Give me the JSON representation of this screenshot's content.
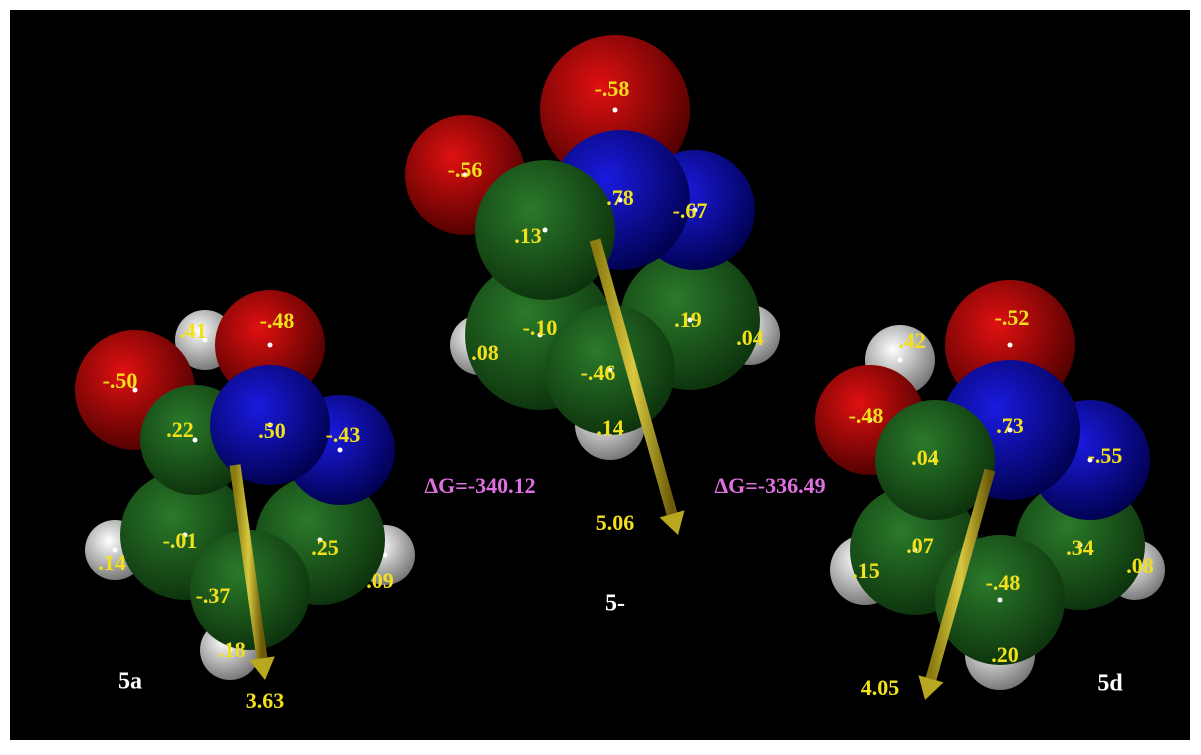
{
  "molecules": [
    {
      "name": "5a",
      "charges": [
        ".41",
        "-.48",
        "-.50",
        ".22",
        ".50",
        "-.43",
        ".14",
        "-.01",
        ".25",
        ".09",
        "-.37",
        ".18"
      ],
      "dipole": "3.63"
    },
    {
      "name": "5-",
      "charges": [
        "-.58",
        "-.56",
        ".78",
        "-.67",
        ".13",
        ".08",
        "-.10",
        ".19",
        ".04",
        "-.46",
        ".14"
      ],
      "dipole": "5.06"
    },
    {
      "name": "5d",
      "charges": [
        ".42",
        "-.52",
        "-.48",
        ".73",
        "-.55",
        ".04",
        ".15",
        ".07",
        ".34",
        ".08",
        "-.48",
        ".20"
      ],
      "dipole": "4.05"
    }
  ],
  "energies": [
    "ΔG=-340.12",
    "ΔG=-336.49"
  ]
}
